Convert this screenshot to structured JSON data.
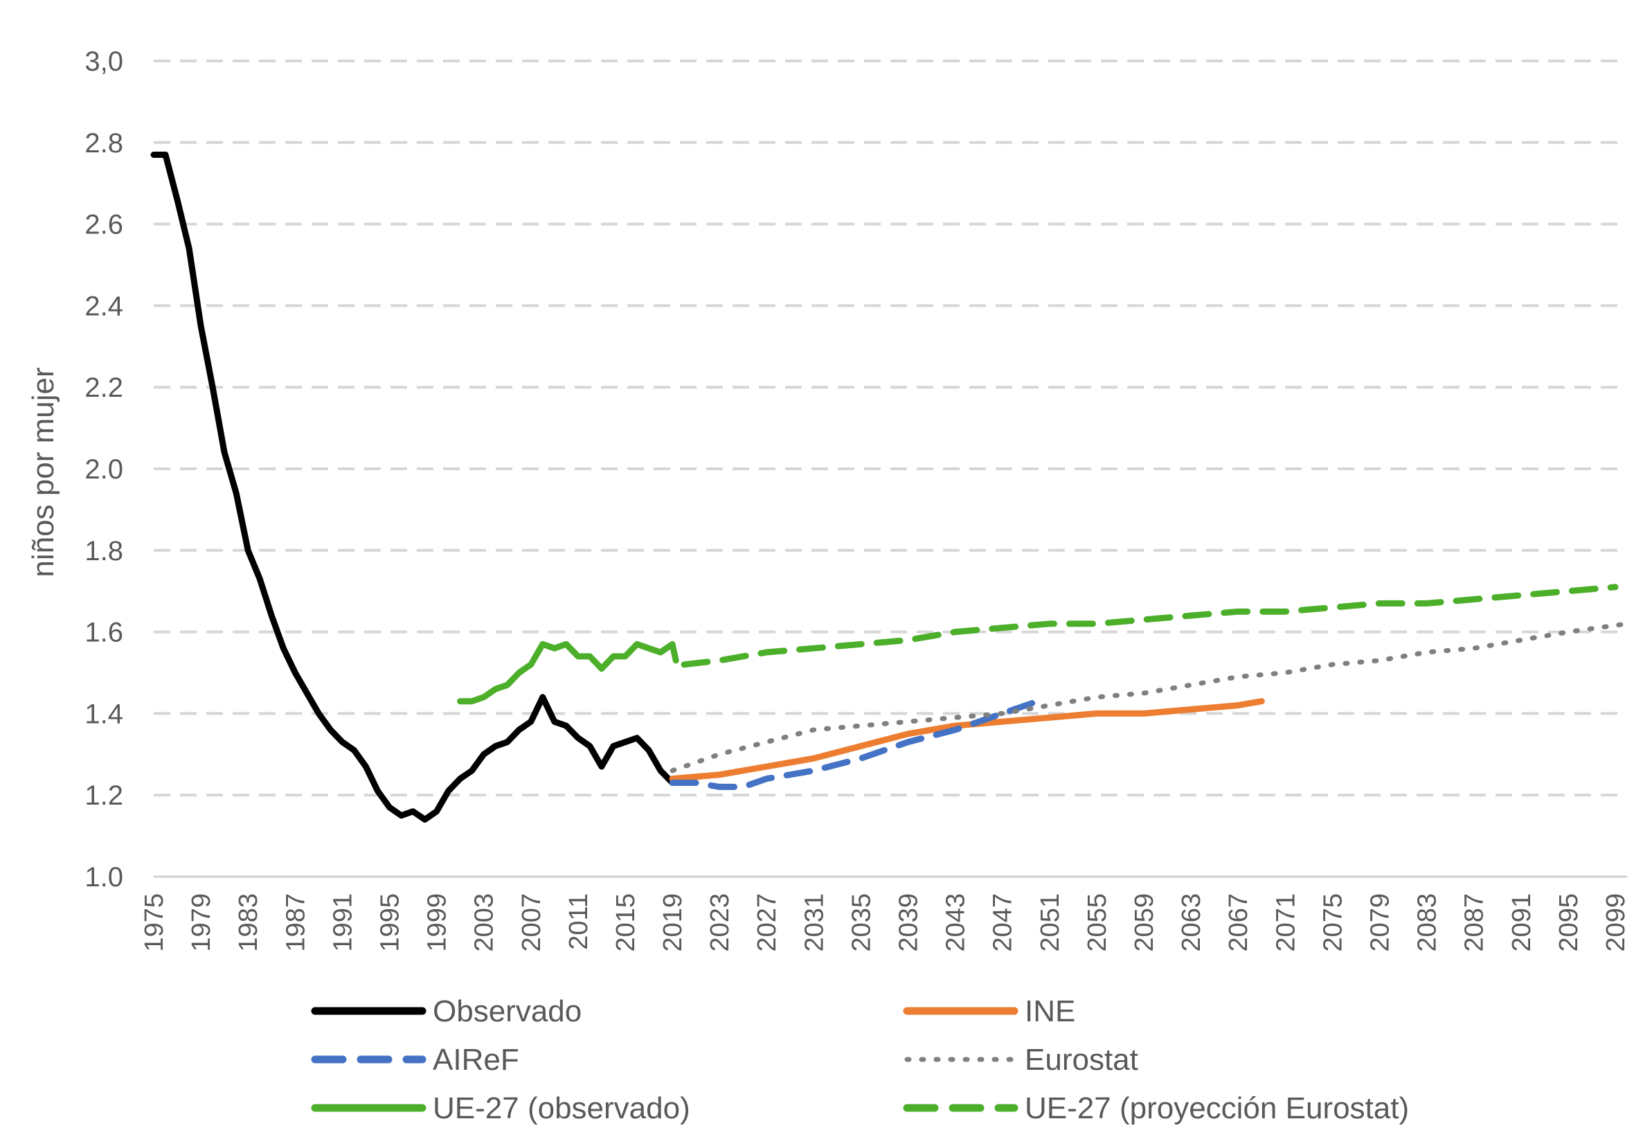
{
  "chart_data": {
    "type": "line",
    "title": "",
    "xlabel": "",
    "ylabel": "niños por mujer",
    "ylim": [
      1.0,
      3.0
    ],
    "xlim": [
      1975,
      2100
    ],
    "y_ticks": [
      "1.0",
      "1.2",
      "1.4",
      "1.6",
      "1.8",
      "2.0",
      "2.2",
      "2.4",
      "2.6",
      "2.8",
      "3,0"
    ],
    "x_ticks": [
      "1975",
      "1979",
      "1983",
      "1987",
      "1991",
      "1995",
      "1999",
      "2003",
      "2007",
      "2011",
      "2015",
      "2019",
      "2023",
      "2027",
      "2031",
      "2035",
      "2039",
      "2043",
      "2047",
      "2051",
      "2055",
      "2059",
      "2063",
      "2067",
      "2071",
      "2075",
      "2079",
      "2083",
      "2087",
      "2091",
      "2095",
      "2099"
    ],
    "grid": true,
    "legend_position": "bottom",
    "series": [
      {
        "name": "Observado",
        "color": "#000000",
        "style": "solid",
        "points": [
          [
            1975,
            2.77
          ],
          [
            1976,
            2.77
          ],
          [
            1977,
            2.66
          ],
          [
            1978,
            2.54
          ],
          [
            1979,
            2.35
          ],
          [
            1980,
            2.2
          ],
          [
            1981,
            2.04
          ],
          [
            1982,
            1.94
          ],
          [
            1983,
            1.8
          ],
          [
            1984,
            1.73
          ],
          [
            1985,
            1.64
          ],
          [
            1986,
            1.56
          ],
          [
            1987,
            1.5
          ],
          [
            1988,
            1.45
          ],
          [
            1989,
            1.4
          ],
          [
            1990,
            1.36
          ],
          [
            1991,
            1.33
          ],
          [
            1992,
            1.31
          ],
          [
            1993,
            1.27
          ],
          [
            1994,
            1.21
          ],
          [
            1995,
            1.17
          ],
          [
            1996,
            1.15
          ],
          [
            1997,
            1.16
          ],
          [
            1998,
            1.14
          ],
          [
            1999,
            1.16
          ],
          [
            2000,
            1.21
          ],
          [
            2001,
            1.24
          ],
          [
            2002,
            1.26
          ],
          [
            2003,
            1.3
          ],
          [
            2004,
            1.32
          ],
          [
            2005,
            1.33
          ],
          [
            2006,
            1.36
          ],
          [
            2007,
            1.38
          ],
          [
            2008,
            1.44
          ],
          [
            2009,
            1.38
          ],
          [
            2010,
            1.37
          ],
          [
            2011,
            1.34
          ],
          [
            2012,
            1.32
          ],
          [
            2013,
            1.27
          ],
          [
            2014,
            1.32
          ],
          [
            2015,
            1.33
          ],
          [
            2016,
            1.34
          ],
          [
            2017,
            1.31
          ],
          [
            2018,
            1.26
          ],
          [
            2019,
            1.23
          ]
        ]
      },
      {
        "name": "INE",
        "color": "#ED7D31",
        "style": "solid",
        "points": [
          [
            2019,
            1.24
          ],
          [
            2023,
            1.25
          ],
          [
            2027,
            1.27
          ],
          [
            2031,
            1.29
          ],
          [
            2035,
            1.32
          ],
          [
            2039,
            1.35
          ],
          [
            2043,
            1.37
          ],
          [
            2047,
            1.38
          ],
          [
            2051,
            1.39
          ],
          [
            2055,
            1.4
          ],
          [
            2059,
            1.4
          ],
          [
            2063,
            1.41
          ],
          [
            2067,
            1.42
          ],
          [
            2069,
            1.43
          ]
        ]
      },
      {
        "name": "AIReF",
        "color": "#4472C4",
        "style": "dashed",
        "points": [
          [
            2019,
            1.23
          ],
          [
            2021,
            1.23
          ],
          [
            2023,
            1.22
          ],
          [
            2025,
            1.22
          ],
          [
            2027,
            1.24
          ],
          [
            2031,
            1.26
          ],
          [
            2035,
            1.29
          ],
          [
            2039,
            1.33
          ],
          [
            2043,
            1.36
          ],
          [
            2047,
            1.4
          ],
          [
            2050,
            1.43
          ]
        ]
      },
      {
        "name": "Eurostat",
        "color": "#7F7F7F",
        "style": "dotted",
        "points": [
          [
            2019,
            1.26
          ],
          [
            2023,
            1.3
          ],
          [
            2027,
            1.33
          ],
          [
            2031,
            1.36
          ],
          [
            2035,
            1.37
          ],
          [
            2039,
            1.38
          ],
          [
            2043,
            1.39
          ],
          [
            2047,
            1.4
          ],
          [
            2051,
            1.42
          ],
          [
            2055,
            1.44
          ],
          [
            2059,
            1.45
          ],
          [
            2063,
            1.47
          ],
          [
            2067,
            1.49
          ],
          [
            2071,
            1.5
          ],
          [
            2075,
            1.52
          ],
          [
            2079,
            1.53
          ],
          [
            2083,
            1.55
          ],
          [
            2087,
            1.56
          ],
          [
            2091,
            1.58
          ],
          [
            2095,
            1.6
          ],
          [
            2100,
            1.62
          ]
        ]
      },
      {
        "name": "UE-27 (observado)",
        "color": "#4CAF2A",
        "style": "solid",
        "points": [
          [
            2001,
            1.43
          ],
          [
            2002,
            1.43
          ],
          [
            2003,
            1.44
          ],
          [
            2004,
            1.46
          ],
          [
            2005,
            1.47
          ],
          [
            2006,
            1.5
          ],
          [
            2007,
            1.52
          ],
          [
            2008,
            1.57
          ],
          [
            2009,
            1.56
          ],
          [
            2010,
            1.57
          ],
          [
            2011,
            1.54
          ],
          [
            2012,
            1.54
          ],
          [
            2013,
            1.51
          ],
          [
            2014,
            1.54
          ],
          [
            2015,
            1.54
          ],
          [
            2016,
            1.57
          ],
          [
            2017,
            1.56
          ],
          [
            2018,
            1.55
          ],
          [
            2019,
            1.57
          ],
          [
            2019.3,
            1.53
          ]
        ]
      },
      {
        "name": "UE-27 (proyección Eurostat)",
        "color": "#4CAF2A",
        "style": "dashed",
        "points": [
          [
            2020,
            1.52
          ],
          [
            2023,
            1.53
          ],
          [
            2027,
            1.55
          ],
          [
            2031,
            1.56
          ],
          [
            2035,
            1.57
          ],
          [
            2039,
            1.58
          ],
          [
            2043,
            1.6
          ],
          [
            2047,
            1.61
          ],
          [
            2051,
            1.62
          ],
          [
            2055,
            1.62
          ],
          [
            2059,
            1.63
          ],
          [
            2063,
            1.64
          ],
          [
            2067,
            1.65
          ],
          [
            2071,
            1.65
          ],
          [
            2075,
            1.66
          ],
          [
            2079,
            1.67
          ],
          [
            2083,
            1.67
          ],
          [
            2087,
            1.68
          ],
          [
            2091,
            1.69
          ],
          [
            2095,
            1.7
          ],
          [
            2099,
            1.71
          ]
        ]
      }
    ]
  }
}
